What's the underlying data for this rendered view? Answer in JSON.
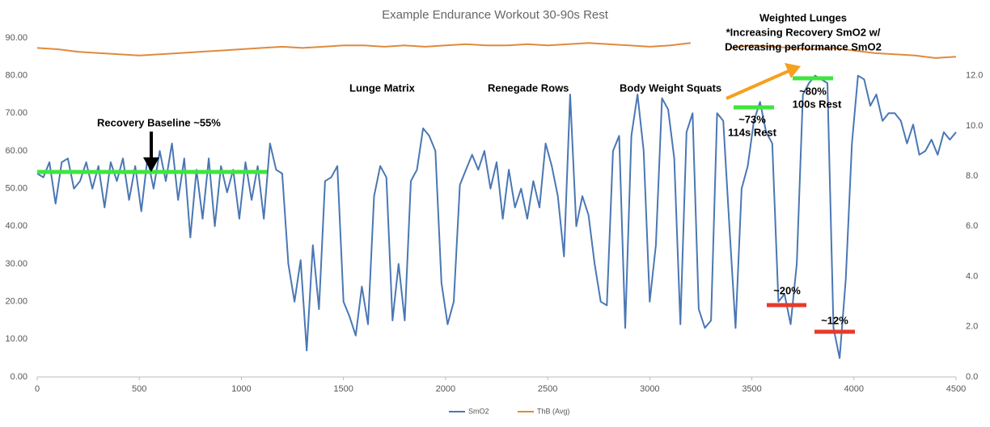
{
  "chart_data": {
    "type": "line",
    "title": "Example Endurance Workout 30-90s Rest",
    "xlim": [
      0,
      4500
    ],
    "xticks": [
      0,
      500,
      1000,
      1500,
      2000,
      2500,
      3000,
      3500,
      4000,
      4500
    ],
    "ylim": [
      0,
      90
    ],
    "yticks": [
      {
        "value": 0,
        "label": "0.00"
      },
      {
        "value": 10,
        "label": "10.00"
      },
      {
        "value": 20,
        "label": "20.00"
      },
      {
        "value": 30,
        "label": "30.00"
      },
      {
        "value": 40,
        "label": "40.00"
      },
      {
        "value": 50,
        "label": "50.00"
      },
      {
        "value": 60,
        "label": "60.00"
      },
      {
        "value": 70,
        "label": "70.00"
      },
      {
        "value": 80,
        "label": "80.00"
      },
      {
        "value": 90,
        "label": "90.00"
      }
    ],
    "y2lim": [
      0,
      13.5
    ],
    "y2ticks": [
      {
        "value": 0,
        "label": "0.0"
      },
      {
        "value": 2,
        "label": "2.0"
      },
      {
        "value": 4,
        "label": "4.0"
      },
      {
        "value": 6,
        "label": "6.0"
      },
      {
        "value": 8,
        "label": "8.0"
      },
      {
        "value": 10,
        "label": "10.0"
      },
      {
        "value": 12,
        "label": "12.0"
      }
    ],
    "legend": "bottom",
    "series": [
      {
        "name": "SmO2",
        "color": "#4a77b4",
        "x": [
          0,
          30,
          60,
          90,
          120,
          150,
          180,
          210,
          240,
          270,
          300,
          330,
          360,
          390,
          420,
          450,
          480,
          510,
          540,
          570,
          600,
          630,
          660,
          690,
          720,
          750,
          780,
          810,
          840,
          870,
          900,
          930,
          960,
          990,
          1020,
          1050,
          1080,
          1110,
          1140,
          1170,
          1200,
          1230,
          1260,
          1290,
          1320,
          1350,
          1380,
          1410,
          1440,
          1470,
          1500,
          1530,
          1560,
          1590,
          1620,
          1650,
          1680,
          1710,
          1740,
          1770,
          1800,
          1830,
          1860,
          1890,
          1920,
          1950,
          1980,
          2010,
          2040,
          2070,
          2100,
          2130,
          2160,
          2190,
          2220,
          2250,
          2280,
          2310,
          2340,
          2370,
          2400,
          2430,
          2460,
          2490,
          2520,
          2550,
          2580,
          2610,
          2640,
          2670,
          2700,
          2730,
          2760,
          2790,
          2820,
          2850,
          2880,
          2910,
          2940,
          2970,
          3000,
          3030,
          3060,
          3090,
          3120,
          3150,
          3180,
          3210,
          3240,
          3270,
          3300,
          3330,
          3360,
          3390,
          3420,
          3450,
          3480,
          3510,
          3540,
          3570,
          3600,
          3630,
          3660,
          3690,
          3720,
          3750,
          3780,
          3810,
          3840,
          3870,
          3900,
          3930,
          3960,
          3990,
          4020,
          4050,
          4080,
          4110,
          4140,
          4170,
          4200,
          4230,
          4260,
          4290,
          4320,
          4350,
          4380,
          4410,
          4440,
          4470,
          4500
        ],
        "values": [
          54,
          53,
          57,
          46,
          57,
          58,
          50,
          52,
          57,
          50,
          56,
          45,
          57,
          52,
          58,
          47,
          56,
          44,
          58,
          50,
          60,
          52,
          62,
          47,
          58,
          37,
          55,
          42,
          58,
          40,
          56,
          49,
          55,
          42,
          57,
          47,
          56,
          42,
          62,
          55,
          54,
          30,
          20,
          31,
          7,
          35,
          18,
          52,
          53,
          56,
          20,
          16,
          11,
          24,
          14,
          48,
          56,
          53,
          15,
          30,
          15,
          52,
          55,
          66,
          64,
          60,
          25,
          14,
          20,
          51,
          55,
          59,
          55,
          60,
          50,
          57,
          42,
          55,
          45,
          50,
          42,
          52,
          45,
          62,
          56,
          48,
          32,
          75,
          40,
          48,
          43,
          30,
          20,
          19,
          60,
          64,
          13,
          64,
          75,
          60,
          20,
          35,
          74,
          71,
          58,
          14,
          65,
          70,
          18,
          13,
          15,
          70,
          68,
          40,
          13,
          50,
          56,
          68,
          73,
          65,
          62,
          20,
          22,
          14,
          30,
          75,
          78,
          80,
          79,
          78,
          13,
          5,
          26,
          62,
          80,
          79,
          72,
          75,
          68,
          70,
          70,
          68,
          62,
          67,
          59,
          60,
          63,
          59,
          65,
          63,
          65
        ]
      },
      {
        "name": "ThB (Avg)",
        "color": "#e08a3c",
        "axis": "y2",
        "x": [
          0,
          100,
          200,
          300,
          400,
          500,
          600,
          700,
          800,
          900,
          1000,
          1100,
          1200,
          1300,
          1400,
          1500,
          1600,
          1700,
          1800,
          1900,
          2000,
          2100,
          2200,
          2300,
          2400,
          2500,
          2600,
          2700,
          2800,
          2900,
          3000,
          3100,
          3200,
          3300,
          3400,
          3500,
          3600,
          3700,
          3800,
          3900,
          4000,
          4100,
          4200,
          4300,
          4400,
          4500
        ],
        "values": [
          13.1,
          13.05,
          12.95,
          12.9,
          12.85,
          12.8,
          12.85,
          12.9,
          12.95,
          13.0,
          13.05,
          13.1,
          13.15,
          13.1,
          13.15,
          13.2,
          13.2,
          13.15,
          13.2,
          13.15,
          13.2,
          13.25,
          13.2,
          13.2,
          13.25,
          13.2,
          13.25,
          13.3,
          13.25,
          13.2,
          13.15,
          13.2,
          13.3,
          null,
          13.1,
          13.2,
          13.15,
          13.1,
          13.05,
          13.1,
          13.0,
          12.9,
          12.85,
          12.8,
          12.7,
          12.75
        ]
      }
    ],
    "annotations": [
      "Recovery Baseline ~55%",
      "Lunge Matrix",
      "Renegade Rows",
      "Body Weight Squats",
      "Weighted Lunges",
      "*Increasing Recovery SmO2 w/",
      "Decreasing performance SmO2",
      "~73%",
      "114s Rest",
      "~80%",
      "100s Rest",
      "~20%",
      "~12%"
    ]
  }
}
